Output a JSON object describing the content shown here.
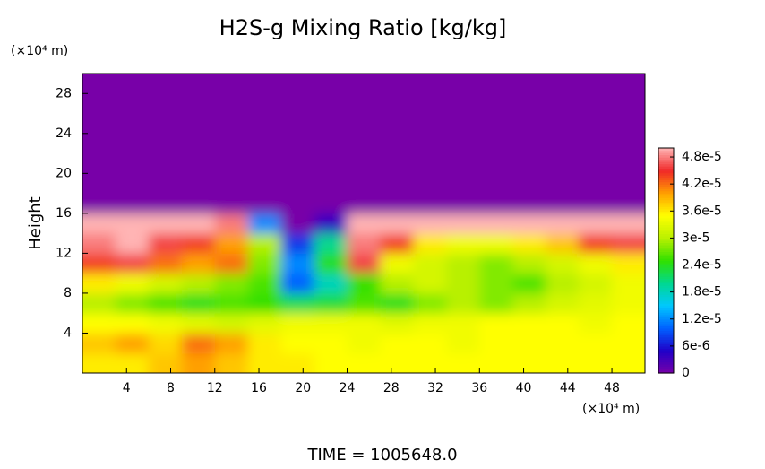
{
  "chart_data": {
    "type": "heatmap",
    "title": "H2S-g Mixing Ratio [kg/kg]",
    "y_label": "Height",
    "x_unit": "(×10⁴ m)",
    "y_unit": "(×10⁴ m)",
    "footer": "TIME = 1005648.0",
    "xlim": [
      0,
      51
    ],
    "ylim": [
      0,
      30
    ],
    "xticks": [
      4,
      8,
      12,
      16,
      20,
      24,
      28,
      32,
      36,
      40,
      44,
      48
    ],
    "yticks": [
      4,
      8,
      12,
      16,
      20,
      24,
      28
    ],
    "x": [
      1.5,
      4.5,
      7.5,
      10.5,
      13.5,
      16.5,
      19.5,
      22.5,
      25.5,
      28.5,
      31.5,
      34.5,
      37.5,
      40.5,
      43.5,
      46.5,
      49.5
    ],
    "y": [
      1,
      3,
      5,
      7,
      9,
      11,
      13,
      15,
      17,
      19,
      21,
      23,
      25,
      27,
      29
    ],
    "z": [
      [
        3.6e-05,
        3.6e-05,
        3.8e-05,
        4e-05,
        3.8e-05,
        3.6e-05,
        3.6e-05,
        3.5e-05,
        3.5e-05,
        3.5e-05,
        3.5e-05,
        3.5e-05,
        3.5e-05,
        3.5e-05,
        3.5e-05,
        3.5e-05,
        3.5e-05
      ],
      [
        3.8e-05,
        4e-05,
        3.7e-05,
        4.2e-05,
        4e-05,
        3.6e-05,
        3.5e-05,
        3.5e-05,
        3.4e-05,
        3.5e-05,
        3.5e-05,
        3.4e-05,
        3.5e-05,
        3.5e-05,
        3.5e-05,
        3.5e-05,
        3.5e-05
      ],
      [
        3.5e-05,
        3.5e-05,
        3.4e-05,
        3.3e-05,
        3.2e-05,
        3.3e-05,
        3.4e-05,
        3.4e-05,
        3.4e-05,
        3.3e-05,
        3.4e-05,
        3.4e-05,
        3.5e-05,
        3.5e-05,
        3.5e-05,
        3.4e-05,
        3.5e-05
      ],
      [
        3e-05,
        2.8e-05,
        2.6e-05,
        2.4e-05,
        2.6e-05,
        2.5e-05,
        2.2e-05,
        2.3e-05,
        2.6e-05,
        2.4e-05,
        2.8e-05,
        3e-05,
        2.8e-05,
        3e-05,
        3.2e-05,
        3.3e-05,
        3.4e-05
      ],
      [
        3.6e-05,
        3.4e-05,
        3.2e-05,
        3e-05,
        2.8e-05,
        2.6e-05,
        1e-05,
        1.8e-05,
        2.5e-05,
        3e-05,
        3.2e-05,
        3e-05,
        2.8e-05,
        2.6e-05,
        3e-05,
        3.2e-05,
        3.4e-05
      ],
      [
        4.4e-05,
        4.6e-05,
        4.2e-05,
        4e-05,
        4.2e-05,
        2.8e-05,
        1.2e-05,
        2.4e-05,
        4.6e-05,
        3.4e-05,
        3.2e-05,
        3e-05,
        2.8e-05,
        3e-05,
        3.2e-05,
        3.4e-05,
        3.6e-05
      ],
      [
        4.8e-05,
        5e-05,
        4.6e-05,
        4.4e-05,
        4e-05,
        3e-05,
        8e-06,
        2e-05,
        4.8e-05,
        4.4e-05,
        3.6e-05,
        3.4e-05,
        3.4e-05,
        3.6e-05,
        3.8e-05,
        4.4e-05,
        4.6e-05
      ],
      [
        5e-05,
        5e-05,
        5e-05,
        5e-05,
        4.8e-05,
        1.2e-05,
        0,
        4e-06,
        5e-05,
        5e-05,
        5e-05,
        5e-05,
        5e-05,
        5e-05,
        5e-05,
        5e-05,
        5e-05
      ],
      [
        0,
        0,
        0,
        0,
        0,
        0,
        0,
        0,
        0,
        0,
        0,
        0,
        0,
        0,
        0,
        0,
        0
      ],
      [
        0,
        0,
        0,
        0,
        0,
        0,
        0,
        0,
        0,
        0,
        0,
        0,
        0,
        0,
        0,
        0,
        0
      ],
      [
        0,
        0,
        0,
        0,
        0,
        0,
        0,
        0,
        0,
        0,
        0,
        0,
        0,
        0,
        0,
        0,
        0
      ],
      [
        0,
        0,
        0,
        0,
        0,
        0,
        0,
        0,
        0,
        0,
        0,
        0,
        0,
        0,
        0,
        0,
        0
      ],
      [
        0,
        0,
        0,
        0,
        0,
        0,
        0,
        0,
        0,
        0,
        0,
        0,
        0,
        0,
        0,
        0,
        0
      ],
      [
        0,
        0,
        0,
        0,
        0,
        0,
        0,
        0,
        0,
        0,
        0,
        0,
        0,
        0,
        0,
        0,
        0
      ],
      [
        0,
        0,
        0,
        0,
        0,
        0,
        0,
        0,
        0,
        0,
        0,
        0,
        0,
        0,
        0,
        0,
        0
      ]
    ],
    "clim": [
      0,
      5e-05
    ],
    "cticks": [
      0,
      {
        "value": 6e-06,
        "label": "6e-6"
      },
      {
        "value": 1.2e-05,
        "label": "1.2e-5"
      },
      {
        "value": 1.8e-05,
        "label": "1.8e-5"
      },
      {
        "value": 2.4e-05,
        "label": "2.4e-5"
      },
      {
        "value": 3e-05,
        "label": "3e-5"
      },
      {
        "value": 3.6e-05,
        "label": "3.6e-5"
      },
      {
        "value": 4.2e-05,
        "label": "4.2e-5"
      },
      {
        "value": 4.8e-05,
        "label": "4.8e-5"
      }
    ],
    "colors": [
      "#7800a8",
      "#2000c8",
      "#0060ff",
      "#00c8ff",
      "#00d890",
      "#30e000",
      "#b8f000",
      "#ffff00",
      "#ffa000",
      "#f02828",
      "#ffb4b4"
    ]
  }
}
